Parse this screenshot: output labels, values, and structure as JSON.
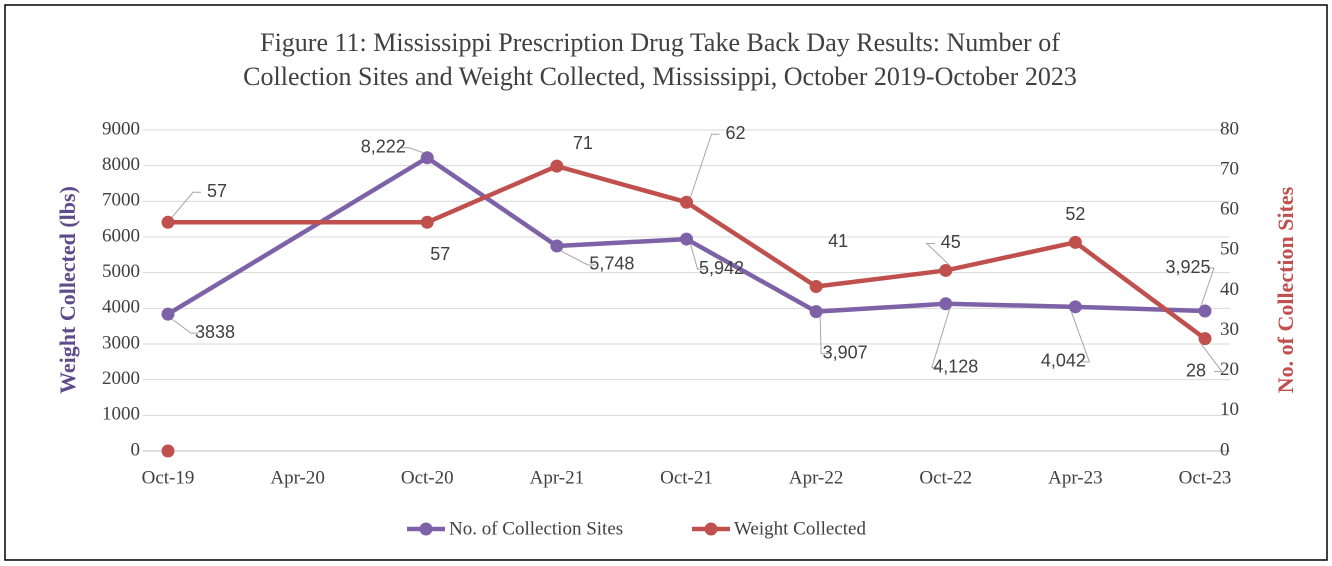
{
  "chart_data": {
    "type": "line",
    "title": [
      "Figure 11: Mississippi Prescription Drug Take Back Day Results: Number of",
      "Collection Sites and Weight Collected, Mississippi, October 2019-October 2023"
    ],
    "y_label": "Weight Collected (lbs)",
    "y2_label": "No. of Collection Sites",
    "categories": [
      "Oct-19",
      "Apr-20",
      "Oct-20",
      "Apr-21",
      "Oct-21",
      "Apr-22",
      "Oct-22",
      "Apr-23",
      "Oct-23"
    ],
    "series": [
      {
        "name": "No. of Collection Sites",
        "color": "#7e62a8",
        "axis": "y",
        "values": [
          3838,
          null,
          8222,
          5748,
          5942,
          3907,
          4128,
          4042,
          3925
        ],
        "value_labels": [
          "3838",
          null,
          "8,222",
          "5,748",
          "5,942",
          "3,907",
          "4,128",
          "4,042",
          "3,925"
        ]
      },
      {
        "name": "Weight Collected",
        "color": "#c0504d",
        "axis": "y2",
        "values": [
          57,
          null,
          57,
          71,
          62,
          41,
          45,
          52,
          28
        ]
      }
    ],
    "extra_points": [
      {
        "x": "Oct-19",
        "value": 0,
        "color": "#c0504d"
      }
    ],
    "connect_gaps": true,
    "ylim": [
      0,
      9000
    ],
    "yticks": [
      0,
      1000,
      2000,
      3000,
      4000,
      5000,
      6000,
      7000,
      8000,
      9000
    ],
    "y2lim": [
      0,
      80
    ],
    "y2ticks": [
      0,
      10,
      20,
      30,
      40,
      50,
      60,
      70,
      80
    ],
    "grid": true,
    "legend": "bottom"
  }
}
